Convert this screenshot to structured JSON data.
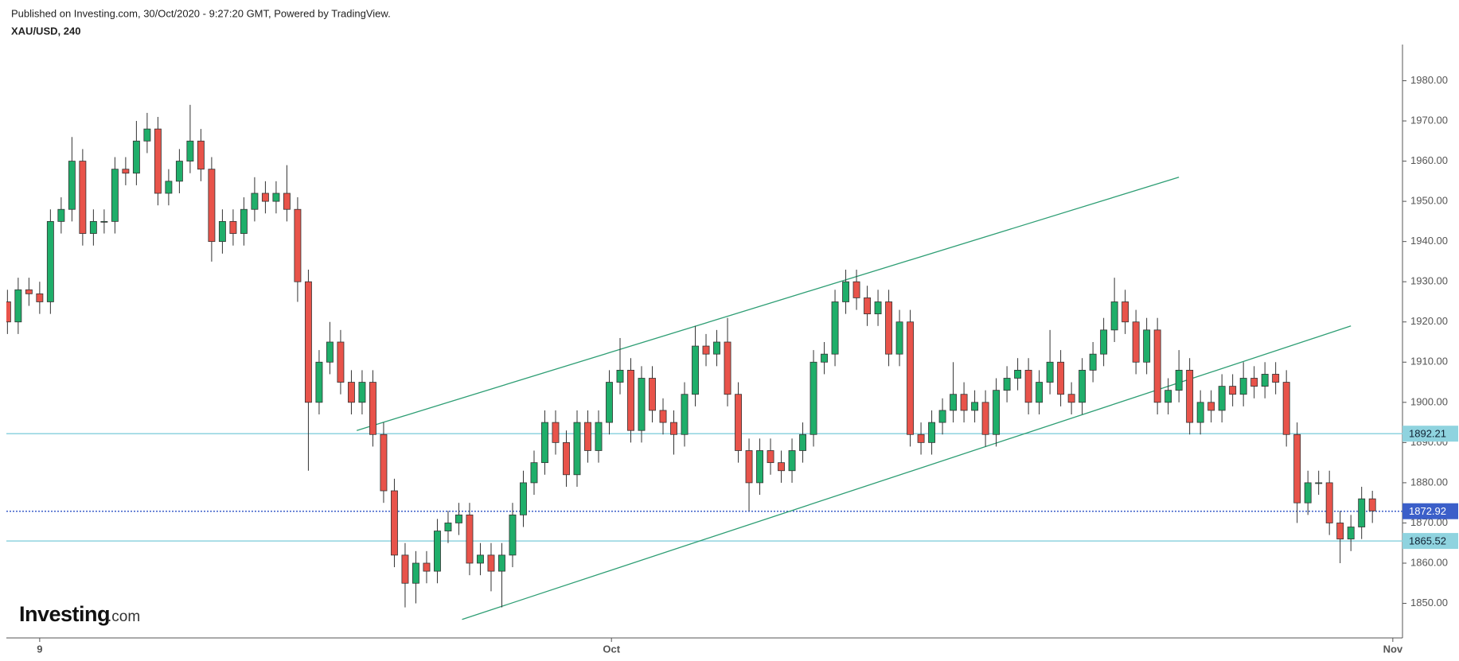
{
  "chart_data": {
    "type": "candlestick",
    "title": "Published on Investing.com, 30/Oct/2020 - 9:27:20 GMT, Powered by TradingView.",
    "subtitle": "XAU/USD, 240",
    "logo_main": "Investing",
    "logo_suffix": ".com",
    "up_color": "#1fae6a",
    "down_color": "#e8534a",
    "open": [
      1925,
      1920,
      1928,
      1927,
      1925,
      1945,
      1948,
      1960,
      1942,
      1945,
      1945,
      1958,
      1957,
      1965,
      1968,
      1952,
      1955,
      1960,
      1965,
      1958,
      1940,
      1945,
      1942,
      1948,
      1952,
      1950,
      1952,
      1948,
      1930,
      1900,
      1910,
      1915,
      1905,
      1900,
      1905,
      1892,
      1878,
      1862,
      1855,
      1860,
      1858,
      1868,
      1870,
      1872,
      1860,
      1862,
      1858,
      1862,
      1872,
      1880,
      1885,
      1895,
      1890,
      1882,
      1895,
      1888,
      1895,
      1905,
      1908,
      1893,
      1906,
      1898,
      1895,
      1892,
      1902,
      1914,
      1912,
      1915,
      1902,
      1888,
      1880,
      1888,
      1885,
      1883,
      1888,
      1892,
      1910,
      1912,
      1925,
      1930,
      1926,
      1922,
      1925,
      1912,
      1920,
      1892,
      1890,
      1895,
      1898,
      1902,
      1898,
      1900,
      1892,
      1903,
      1906,
      1908,
      1900,
      1905,
      1910,
      1902,
      1900,
      1908,
      1912,
      1918,
      1925,
      1920,
      1910,
      1918,
      1900,
      1903,
      1908,
      1895,
      1900,
      1898,
      1904,
      1902,
      1906,
      1904,
      1907,
      1905,
      1892,
      1875,
      1880,
      1880,
      1870,
      1866,
      1869,
      1876
    ],
    "high": [
      1928,
      1931,
      1931,
      1930,
      1948,
      1951,
      1966,
      1963,
      1948,
      1948,
      1961,
      1961,
      1970,
      1972,
      1971,
      1958,
      1963,
      1974,
      1968,
      1961,
      1948,
      1948,
      1951,
      1956,
      1955,
      1955,
      1959,
      1951,
      1933,
      1913,
      1920,
      1918,
      1908,
      1908,
      1908,
      1895,
      1881,
      1865,
      1863,
      1863,
      1871,
      1873,
      1875,
      1875,
      1865,
      1865,
      1865,
      1875,
      1883,
      1888,
      1898,
      1898,
      1893,
      1898,
      1898,
      1898,
      1908,
      1916,
      1911,
      1909,
      1909,
      1901,
      1898,
      1905,
      1919,
      1917,
      1918,
      1921,
      1905,
      1891,
      1891,
      1891,
      1888,
      1891,
      1895,
      1913,
      1915,
      1928,
      1933,
      1933,
      1929,
      1928,
      1928,
      1923,
      1923,
      1895,
      1898,
      1901,
      1910,
      1905,
      1903,
      1903,
      1906,
      1909,
      1911,
      1911,
      1908,
      1918,
      1913,
      1905,
      1911,
      1915,
      1921,
      1931,
      1928,
      1923,
      1921,
      1921,
      1906,
      1913,
      1911,
      1903,
      1903,
      1907,
      1907,
      1910,
      1909,
      1910,
      1910,
      1908,
      1895,
      1883,
      1883,
      1883,
      1873,
      1872,
      1879,
      1878
    ],
    "low": [
      1917,
      1917,
      1924,
      1922,
      1922,
      1942,
      1945,
      1939,
      1939,
      1942,
      1942,
      1954,
      1954,
      1962,
      1949,
      1949,
      1952,
      1957,
      1955,
      1935,
      1937,
      1939,
      1939,
      1945,
      1947,
      1947,
      1945,
      1925,
      1883,
      1897,
      1907,
      1902,
      1897,
      1897,
      1889,
      1875,
      1859,
      1849,
      1850,
      1855,
      1855,
      1865,
      1867,
      1857,
      1857,
      1853,
      1849,
      1859,
      1869,
      1877,
      1882,
      1887,
      1879,
      1879,
      1885,
      1885,
      1892,
      1902,
      1890,
      1890,
      1895,
      1892,
      1887,
      1889,
      1899,
      1909,
      1909,
      1899,
      1885,
      1873,
      1877,
      1882,
      1880,
      1880,
      1885,
      1889,
      1907,
      1909,
      1922,
      1923,
      1919,
      1919,
      1909,
      1909,
      1889,
      1887,
      1887,
      1892,
      1895,
      1895,
      1895,
      1889,
      1889,
      1900,
      1903,
      1897,
      1897,
      1902,
      1899,
      1897,
      1897,
      1905,
      1909,
      1915,
      1917,
      1907,
      1907,
      1897,
      1897,
      1900,
      1892,
      1892,
      1895,
      1895,
      1899,
      1899,
      1901,
      1901,
      1902,
      1889,
      1870,
      1872,
      1877,
      1867,
      1860,
      1863,
      1866,
      1870
    ],
    "close": [
      1920,
      1928,
      1927,
      1925,
      1945,
      1948,
      1960,
      1942,
      1945,
      1945,
      1958,
      1957,
      1965,
      1968,
      1952,
      1955,
      1960,
      1965,
      1958,
      1940,
      1945,
      1942,
      1948,
      1952,
      1950,
      1952,
      1948,
      1930,
      1900,
      1910,
      1915,
      1905,
      1900,
      1905,
      1892,
      1878,
      1862,
      1855,
      1860,
      1858,
      1868,
      1870,
      1872,
      1860,
      1862,
      1858,
      1862,
      1872,
      1880,
      1885,
      1895,
      1890,
      1882,
      1895,
      1888,
      1895,
      1905,
      1908,
      1893,
      1906,
      1898,
      1895,
      1892,
      1902,
      1914,
      1912,
      1915,
      1902,
      1888,
      1880,
      1888,
      1885,
      1883,
      1888,
      1892,
      1910,
      1912,
      1925,
      1930,
      1926,
      1922,
      1925,
      1912,
      1920,
      1892,
      1890,
      1895,
      1898,
      1902,
      1898,
      1900,
      1892,
      1903,
      1906,
      1908,
      1900,
      1905,
      1910,
      1902,
      1900,
      1908,
      1912,
      1918,
      1925,
      1920,
      1910,
      1918,
      1900,
      1903,
      1908,
      1895,
      1900,
      1898,
      1904,
      1902,
      1906,
      1904,
      1907,
      1905,
      1892,
      1875,
      1880,
      1880,
      1870,
      1866,
      1869,
      1876,
      1873
    ],
    "xlim": [
      -0.1,
      129.8
    ],
    "xticks": [
      {
        "value": 3,
        "label": "9"
      },
      {
        "value": 56.2,
        "label": "Oct"
      },
      {
        "value": 128.9,
        "label": "Nov"
      }
    ],
    "ylim": [
      1841.4,
      1989
    ],
    "yticks": [
      {
        "value": 1850,
        "label": "1850.00"
      },
      {
        "value": 1860,
        "label": "1860.00"
      },
      {
        "value": 1870,
        "label": "1870.00"
      },
      {
        "value": 1880,
        "label": "1880.00"
      },
      {
        "value": 1890,
        "label": "1890.00"
      },
      {
        "value": 1900,
        "label": "1900.00"
      },
      {
        "value": 1910,
        "label": "1910.00"
      },
      {
        "value": 1920,
        "label": "1920.00"
      },
      {
        "value": 1930,
        "label": "1930.00"
      },
      {
        "value": 1940,
        "label": "1940.00"
      },
      {
        "value": 1950,
        "label": "1950.00"
      },
      {
        "value": 1960,
        "label": "1960.00"
      },
      {
        "value": 1970,
        "label": "1970.00"
      },
      {
        "value": 1980,
        "label": "1980.00"
      }
    ],
    "levels": [
      {
        "value": 1892.21,
        "color": "#8fd3df",
        "style": "solid"
      },
      {
        "value": 1872.92,
        "color": "#3b5fc9",
        "style": "dotted"
      },
      {
        "value": 1865.52,
        "color": "#8fd3df",
        "style": "solid"
      }
    ],
    "trend_lines": [
      {
        "x": [
          32.5,
          109
        ],
        "y": [
          1893,
          1956
        ],
        "color": "#2e9e74"
      },
      {
        "x": [
          42.3,
          125
        ],
        "y": [
          1846,
          1919
        ],
        "color": "#2e9e74"
      }
    ]
  }
}
